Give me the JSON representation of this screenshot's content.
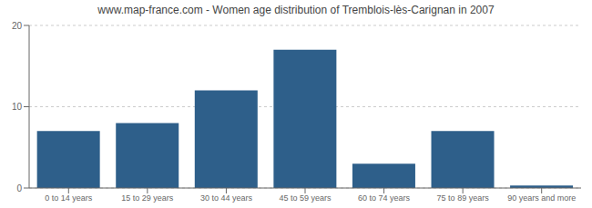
{
  "chart_data": {
    "type": "bar",
    "title": "www.map-france.com - Women age distribution of Tremblois-lès-Carignan in 2007",
    "categories": [
      "0 to 14 years",
      "15 to 29 years",
      "30 to 44 years",
      "45 to 59 years",
      "60 to 74 years",
      "75 to 89 years",
      "90 years and more"
    ],
    "values": [
      7,
      8,
      12,
      17,
      3,
      7,
      0.3
    ],
    "color": "#2e5f8a",
    "ylim": [
      0,
      20
    ],
    "yticks": [
      0,
      10,
      20
    ],
    "grid": true
  }
}
